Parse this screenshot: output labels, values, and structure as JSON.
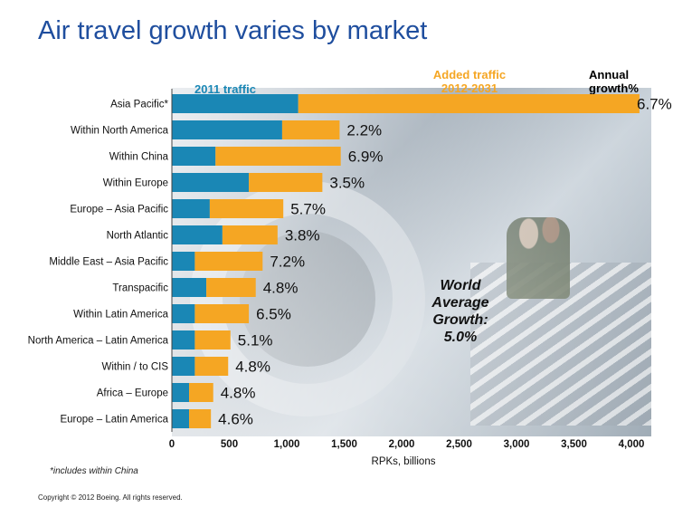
{
  "title": "Air travel growth varies by market",
  "headers": {
    "base": "2011 traffic",
    "added_line1": "Added traffic",
    "added_line2": "2012-2031",
    "growth_line1": "Annual",
    "growth_line2": "growth%"
  },
  "world_average": {
    "line1": "World",
    "line2": "Average",
    "line3": "Growth:",
    "line4": "5.0%"
  },
  "footnote": "*includes within China",
  "copyright": "Copyright © 2012 Boeing. All rights reserved.",
  "colors": {
    "base": "#1a87b5",
    "added": "#f5a623",
    "title": "#1f4e9e"
  },
  "chart_data": {
    "type": "bar",
    "orientation": "horizontal",
    "stacked": true,
    "categories": [
      "Asia Pacific*",
      "Within North America",
      "Within China",
      "Within Europe",
      "Europe – Asia Pacific",
      "North Atlantic",
      "Middle East – Asia Pacific",
      "Transpacific",
      "Within Latin America",
      "North America – Latin America",
      "Within / to CIS",
      "Africa – Europe",
      "Europe – Latin America"
    ],
    "series": [
      {
        "name": "2011 traffic",
        "values": [
          1100,
          960,
          380,
          670,
          330,
          440,
          200,
          300,
          200,
          200,
          200,
          150,
          150
        ]
      },
      {
        "name": "Added traffic 2012-2031",
        "values": [
          2970,
          500,
          1090,
          640,
          640,
          480,
          590,
          430,
          470,
          310,
          290,
          210,
          190
        ]
      }
    ],
    "growth_labels": [
      "6.7%",
      "2.2%",
      "6.9%",
      "3.5%",
      "5.7%",
      "3.8%",
      "7.2%",
      "4.8%",
      "6.5%",
      "5.1%",
      "4.8%",
      "4.8%",
      "4.6%"
    ],
    "xlabel": "RPKs, billions",
    "xlim": [
      0,
      4000
    ],
    "xticks": [
      0,
      500,
      1000,
      1500,
      2000,
      2500,
      3000,
      3500,
      4000
    ],
    "xtick_labels": [
      "0",
      "500",
      "1,000",
      "1,500",
      "2,000",
      "2,500",
      "3,000",
      "3,500",
      "4,000"
    ]
  }
}
